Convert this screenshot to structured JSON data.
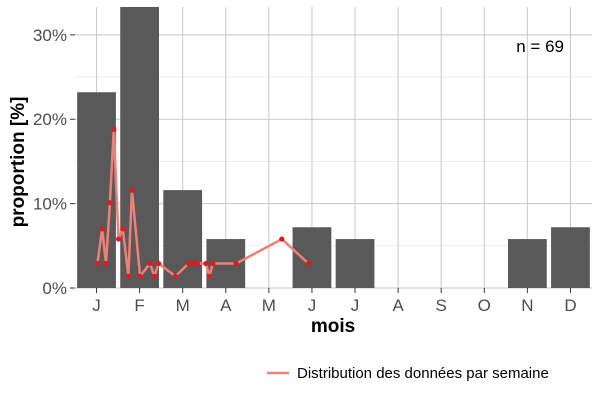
{
  "chart_data": {
    "type": "bar",
    "categories": [
      "J",
      "F",
      "M",
      "A",
      "M",
      "J",
      "J",
      "A",
      "S",
      "O",
      "N",
      "D"
    ],
    "values": [
      23.2,
      33.3,
      11.6,
      5.8,
      0,
      7.2,
      5.8,
      0,
      0,
      0,
      5.8,
      7.2
    ],
    "xlabel": "mois",
    "ylabel": "proportion [%]",
    "ylim": [
      0,
      33.3
    ],
    "yticks": [
      0,
      10,
      20,
      30
    ],
    "ytick_labels": [
      "0%",
      "10%",
      "20%",
      "30%"
    ],
    "annotation": "n = 69",
    "grid": true,
    "legend_position": "bottom-right",
    "colors": {
      "bar": "#595959",
      "line": "#f08075",
      "point": "#e31a1c",
      "grid": "#c8c8c8",
      "axis": "#333333"
    },
    "series": [
      {
        "name": "Distribution des données par semaine",
        "type": "line",
        "x": [
          0.52,
          0.63,
          0.72,
          0.81,
          0.9,
          1.01,
          1.11,
          1.24,
          1.32,
          1.51,
          1.74,
          1.84,
          1.94,
          2.33,
          2.64,
          2.74,
          2.84,
          3.04,
          3.12,
          3.2,
          3.74,
          4.8,
          5.42
        ],
        "y": [
          2.9,
          7.0,
          2.9,
          10.1,
          18.8,
          5.8,
          7.0,
          1.4,
          11.6,
          1.4,
          2.9,
          1.4,
          2.9,
          1.4,
          2.9,
          2.9,
          2.9,
          2.9,
          1.4,
          2.9,
          2.9,
          5.8,
          2.9
        ]
      }
    ]
  }
}
